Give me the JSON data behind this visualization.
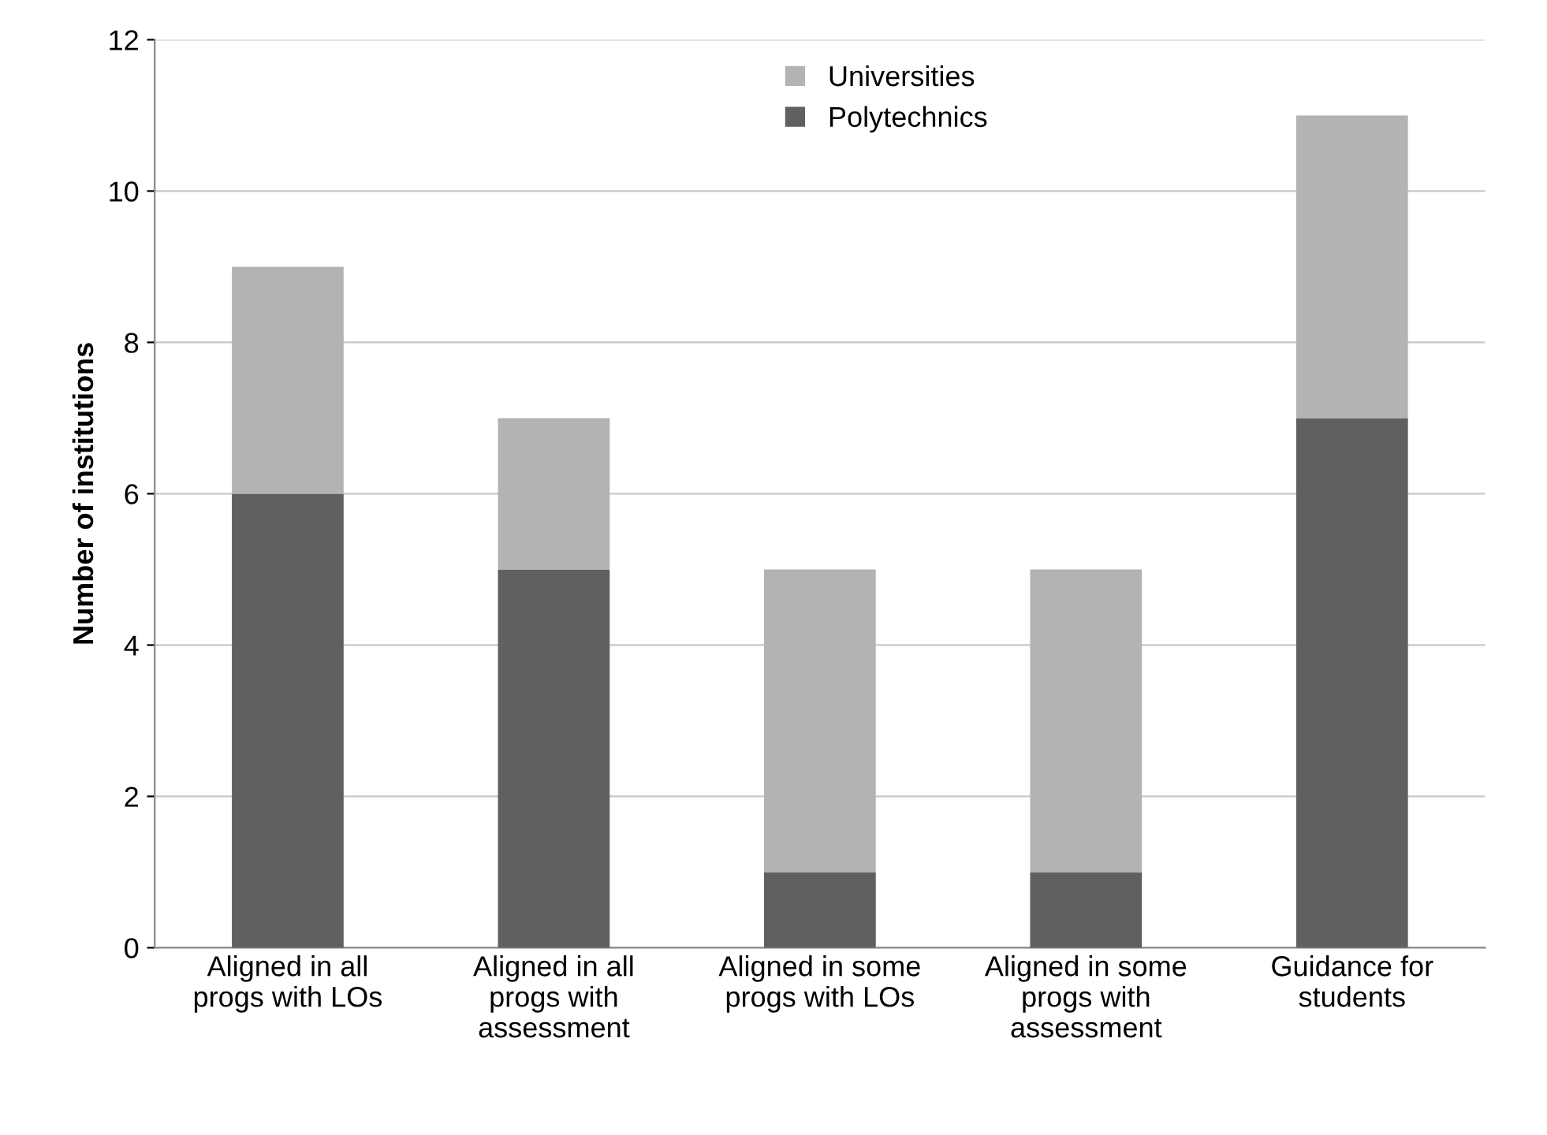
{
  "chart_data": {
    "type": "bar",
    "stacked": true,
    "ylabel": "Number of institutions",
    "categories": [
      "Aligned in all progs with LOs",
      "Aligned in all progs with assessment",
      "Aligned in some progs with LOs",
      "Aligned in some progs with assessment",
      "Guidance for students"
    ],
    "series": [
      {
        "name": "Polytechnics",
        "color": "#606060",
        "values": [
          6,
          5,
          1,
          1,
          7
        ]
      },
      {
        "name": "Universities",
        "color": "#b3b3b3",
        "values": [
          3,
          2,
          4,
          4,
          4
        ]
      }
    ],
    "ylim": [
      0,
      12
    ],
    "yticks": [
      0,
      2,
      4,
      6,
      8,
      10,
      12
    ],
    "grid": "y",
    "legend": "top"
  }
}
